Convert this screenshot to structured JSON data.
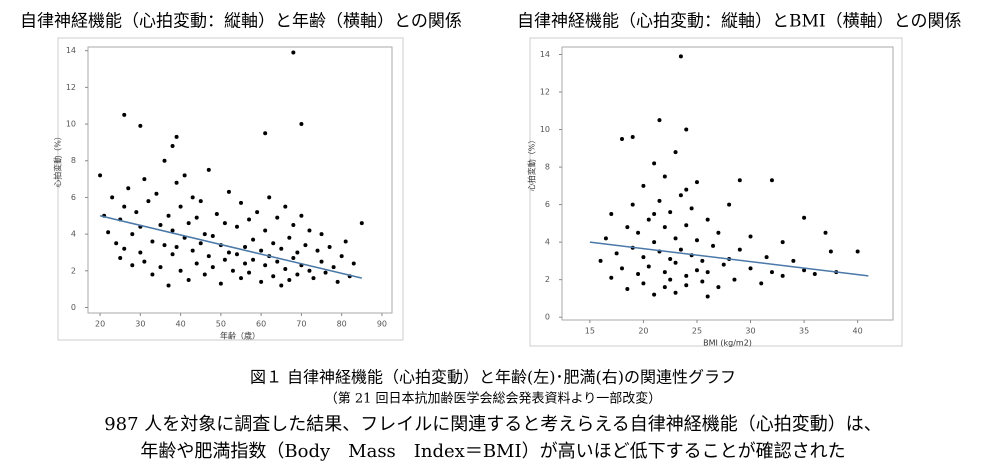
{
  "chart_data": [
    {
      "type": "scatter",
      "title": "自律神経機能（心拍変動：縦軸）と年齢（横軸）との関係",
      "x_label": "年齢（歳）",
      "y_label": "心拍変動（%）",
      "color": "#000000",
      "x": [
        20,
        21,
        22,
        23,
        24,
        25,
        25,
        26,
        26,
        27,
        28,
        28,
        29,
        30,
        30,
        31,
        31,
        32,
        33,
        33,
        34,
        35,
        35,
        36,
        36,
        37,
        37,
        38,
        38,
        39,
        39,
        40,
        40,
        41,
        41,
        42,
        42,
        43,
        43,
        44,
        44,
        45,
        45,
        46,
        46,
        47,
        47,
        48,
        48,
        49,
        50,
        50,
        51,
        51,
        52,
        52,
        53,
        54,
        54,
        55,
        55,
        56,
        56,
        57,
        57,
        58,
        58,
        59,
        60,
        60,
        61,
        61,
        62,
        62,
        63,
        63,
        64,
        64,
        65,
        65,
        66,
        66,
        67,
        67,
        68,
        68,
        69,
        69,
        70,
        70,
        71,
        72,
        72,
        73,
        74,
        75,
        75,
        76,
        77,
        78,
        79,
        80,
        81,
        82,
        83,
        85,
        68,
        70,
        26,
        61,
        39,
        30,
        38
      ],
      "y": [
        7.2,
        5.0,
        4.1,
        6.0,
        3.5,
        4.8,
        2.7,
        5.5,
        3.2,
        6.5,
        4.0,
        2.3,
        5.2,
        4.4,
        3.0,
        7.0,
        2.5,
        5.8,
        3.6,
        1.8,
        6.2,
        4.5,
        2.2,
        8.0,
        3.4,
        5.0,
        1.2,
        4.2,
        2.9,
        6.8,
        3.3,
        5.5,
        2.0,
        7.2,
        3.8,
        4.6,
        1.5,
        6.0,
        3.1,
        4.9,
        2.4,
        5.8,
        3.5,
        4.0,
        1.8,
        7.5,
        2.8,
        3.9,
        2.2,
        5.1,
        3.4,
        1.3,
        4.6,
        2.6,
        6.3,
        3.0,
        2.0,
        4.4,
        2.9,
        5.7,
        1.6,
        3.3,
        2.4,
        4.8,
        1.9,
        3.7,
        2.6,
        5.2,
        3.1,
        1.4,
        4.2,
        2.3,
        6.0,
        2.8,
        3.5,
        1.7,
        4.9,
        2.5,
        3.2,
        1.2,
        5.5,
        2.1,
        3.8,
        1.5,
        4.5,
        2.7,
        3.0,
        1.8,
        5.0,
        2.3,
        3.4,
        2.0,
        4.2,
        1.6,
        3.1,
        2.5,
        4.0,
        1.9,
        3.3,
        2.2,
        1.4,
        2.8,
        3.6,
        1.7,
        2.4,
        4.6,
        13.9,
        10.0,
        10.5,
        9.5,
        9.3,
        9.9,
        8.8
      ],
      "trendline": {
        "x": [
          20,
          85
        ],
        "y": [
          5.0,
          1.6
        ],
        "color": "#4a78a8"
      },
      "xlim": [
        17,
        92.5
      ],
      "ylim": [
        -0.3,
        14.2
      ],
      "xticks": [
        20,
        30,
        40,
        50,
        60,
        70,
        80,
        90
      ],
      "yticks": [
        0,
        2,
        4,
        6,
        8,
        10,
        12,
        14
      ]
    },
    {
      "type": "scatter",
      "title": "自律神経機能（心拍変動：縦軸）とBMI（横軸）との関係",
      "x_label": "BMI (kg/m2)",
      "y_label": "心拍変動（%）",
      "color": "#000000",
      "x": [
        16,
        16.5,
        17,
        17,
        17.5,
        18,
        18,
        18.5,
        18.5,
        19,
        19,
        19,
        19.5,
        19.5,
        20,
        20,
        20,
        20.5,
        20.5,
        21,
        21,
        21,
        21.5,
        21.5,
        21.5,
        22,
        22,
        22,
        22,
        22.5,
        22.5,
        22.5,
        23,
        23,
        23,
        23,
        23.5,
        23.5,
        23.5,
        24,
        24,
        24,
        24,
        24.5,
        24.5,
        25,
        25,
        25,
        25.5,
        25.5,
        26,
        26,
        26.5,
        27,
        27,
        27.5,
        28,
        28,
        28.5,
        29,
        29,
        30,
        30,
        31,
        31.5,
        32,
        33,
        33,
        34,
        35,
        35,
        36,
        37,
        37.5,
        38,
        40,
        32,
        24,
        26,
        21
      ],
      "y": [
        3.0,
        4.2,
        2.1,
        5.5,
        3.4,
        9.5,
        2.6,
        4.8,
        1.5,
        9.6,
        3.7,
        6.0,
        2.3,
        4.5,
        7.0,
        3.2,
        1.8,
        5.2,
        2.7,
        8.2,
        4.0,
        1.2,
        10.5,
        3.5,
        6.2,
        2.4,
        4.8,
        7.5,
        1.6,
        3.1,
        5.6,
        2.0,
        4.2,
        8.8,
        1.3,
        2.9,
        13.9,
        3.6,
        6.5,
        10.0,
        2.2,
        4.9,
        1.7,
        3.3,
        5.8,
        2.5,
        4.1,
        7.2,
        1.9,
        3.0,
        5.2,
        2.4,
        3.8,
        1.6,
        4.5,
        2.8,
        6.0,
        3.1,
        2.0,
        7.3,
        3.6,
        2.6,
        4.3,
        1.8,
        3.2,
        2.4,
        4.0,
        2.2,
        3.0,
        5.3,
        2.5,
        2.3,
        4.5,
        3.5,
        2.4,
        3.5,
        7.3,
        6.8,
        1.1,
        5.5
      ],
      "trendline": {
        "x": [
          15,
          41
        ],
        "y": [
          4.0,
          2.2
        ],
        "color": "#4a78a8"
      },
      "xlim": [
        12.4,
        43.3
      ],
      "ylim": [
        -0.15,
        14.4
      ],
      "xticks": [
        15,
        20,
        25,
        30,
        35,
        40
      ],
      "yticks": [
        0,
        2,
        4,
        6,
        8,
        10,
        12,
        14
      ]
    }
  ],
  "caption": {
    "figure": "図１ 自律神経機能（心拍変動）と年齢(左)･肥満(右)の関連性グラフ",
    "source": "（第 21 回日本抗加齢医学会総会発表資料より一部改変）",
    "line1": "987 人を対象に調査した結果、フレイルに関連すると考えらえる自律神経機能（心拍変動）は、",
    "line2": "年齢や肥満指数（Body　Mass　Index＝BMI）が高いほど低下することが確認された"
  }
}
